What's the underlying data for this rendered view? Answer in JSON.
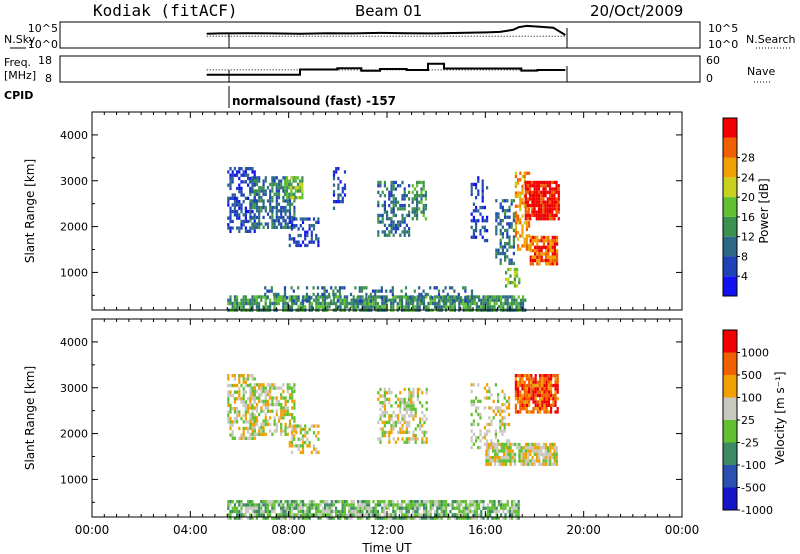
{
  "header": {
    "station": "Kodiak (fitACF)",
    "beam": "Beam 01",
    "date": "20/Oct/2009"
  },
  "panels": {
    "nsky": {
      "left_label": "N.Sky",
      "left_ticks": [
        "10^5",
        "10^0"
      ],
      "right_ticks": [
        "10^5",
        "10^0"
      ],
      "right_label": "N.Search"
    },
    "freq": {
      "left_label": "Freq.",
      "left_unit": "[MHz]",
      "left_ticks": [
        "18",
        "8"
      ],
      "right_ticks": [
        "60",
        "0"
      ],
      "right_label": "Nave"
    },
    "cpid": {
      "label": "CPID",
      "program": "normalsound (fast) -157"
    }
  },
  "chart_data": [
    {
      "type": "line",
      "name": "nsky-nsearch",
      "x_unit": "hours UT",
      "xlim": [
        0,
        24
      ],
      "series": [
        {
          "name": "N.Sky",
          "style": "solid",
          "x": [
            5.5,
            6.0,
            7.0,
            8.0,
            9.0,
            10.0,
            11.0,
            12.0,
            13.0,
            14.0,
            15.0,
            16.0,
            16.5,
            17.0,
            17.2,
            17.5,
            18.0,
            18.5,
            18.95
          ],
          "y": [
            0.55,
            0.56,
            0.57,
            0.56,
            0.55,
            0.57,
            0.56,
            0.58,
            0.57,
            0.56,
            0.58,
            0.6,
            0.62,
            0.7,
            0.8,
            0.85,
            0.82,
            0.78,
            0.5
          ]
        },
        {
          "name": "N.Search",
          "style": "dotted",
          "x": [
            5.5,
            19.0
          ],
          "y": [
            0.45,
            0.45
          ]
        }
      ]
    },
    {
      "type": "line",
      "name": "frequency-nave",
      "x_unit": "hours UT",
      "xlim": [
        0,
        24
      ],
      "left_ylim": [
        8,
        18
      ],
      "right_ylim": [
        0,
        60
      ],
      "series": [
        {
          "name": "Freq",
          "units": "MHz",
          "style": "solid",
          "x": [
            5.5,
            9.0,
            9.0,
            10.4,
            10.4,
            11.3,
            11.3,
            12.0,
            12.0,
            13.0,
            13.0,
            13.8,
            13.8,
            14.4,
            14.4,
            17.3,
            17.3,
            17.9,
            17.9,
            18.95
          ],
          "y": [
            10.8,
            10.8,
            12.8,
            12.8,
            13.3,
            13.3,
            12.3,
            12.3,
            13.0,
            13.0,
            12.6,
            12.6,
            15.0,
            15.0,
            13.2,
            13.2,
            12.4,
            12.4,
            12.6,
            12.6
          ]
        },
        {
          "name": "Nave",
          "units": "count",
          "style": "dotted",
          "x": [
            5.5,
            19.0
          ],
          "y": [
            28,
            28
          ]
        }
      ]
    },
    {
      "type": "heatmap",
      "name": "power",
      "xlabel": "Time UT",
      "ylabel": "Slant Range [km]",
      "xlim": [
        0,
        24
      ],
      "ylim": [
        180,
        4500
      ],
      "yticks": [
        1000,
        2000,
        3000,
        4000
      ],
      "colorbar": {
        "label": "Power [dB]",
        "ticks": [
          "4",
          "8",
          "12",
          "16",
          "20",
          "24",
          "28"
        ],
        "colors": [
          "#1212f0",
          "#2042b8",
          "#2c6888",
          "#3c9050",
          "#60c030",
          "#c8d020",
          "#f0a000",
          "#f06000",
          "#f00000"
        ]
      },
      "regions": [
        {
          "t": [
            5.5,
            6.6
          ],
          "r": [
            1900,
            3300
          ],
          "level": 1,
          "density": 0.55
        },
        {
          "t": [
            6.4,
            8.2
          ],
          "r": [
            2000,
            3100
          ],
          "level": 2,
          "density": 0.6
        },
        {
          "t": [
            7.8,
            8.6
          ],
          "r": [
            2600,
            3100
          ],
          "level": 4,
          "density": 0.7
        },
        {
          "t": [
            8.0,
            9.2
          ],
          "r": [
            1600,
            2200
          ],
          "level": 1,
          "density": 0.45
        },
        {
          "t": [
            9.8,
            10.3
          ],
          "r": [
            2400,
            3300
          ],
          "level": 1,
          "density": 0.3
        },
        {
          "t": [
            11.6,
            12.9
          ],
          "r": [
            1800,
            3000
          ],
          "level": 2,
          "density": 0.45
        },
        {
          "t": [
            13.0,
            13.6
          ],
          "r": [
            2200,
            3000
          ],
          "level": 3,
          "density": 0.6
        },
        {
          "t": [
            15.4,
            16.1
          ],
          "r": [
            1700,
            3100
          ],
          "level": 1,
          "density": 0.35
        },
        {
          "t": [
            16.4,
            17.2
          ],
          "r": [
            1200,
            2600
          ],
          "level": 2,
          "density": 0.5
        },
        {
          "t": [
            16.8,
            17.4
          ],
          "r": [
            700,
            1100
          ],
          "level": 4,
          "density": 0.55
        },
        {
          "t": [
            17.2,
            17.8
          ],
          "r": [
            1500,
            3200
          ],
          "level": 6,
          "density": 0.55
        },
        {
          "t": [
            17.6,
            18.95
          ],
          "r": [
            2200,
            3000
          ],
          "level": 8,
          "density": 0.9
        },
        {
          "t": [
            17.8,
            18.95
          ],
          "r": [
            1200,
            1800
          ],
          "level": 7,
          "density": 0.85
        },
        {
          "t": [
            5.5,
            17.6
          ],
          "r": [
            180,
            500
          ],
          "level": 3,
          "density": 0.8
        },
        {
          "t": [
            7.0,
            15.5
          ],
          "r": [
            400,
            700
          ],
          "level": 2,
          "density": 0.3
        }
      ]
    },
    {
      "type": "heatmap",
      "name": "velocity",
      "xlabel": "Time UT",
      "ylabel": "Slant Range [km]",
      "xlim": [
        0,
        24
      ],
      "ylim": [
        180,
        4500
      ],
      "yticks": [
        1000,
        2000,
        3000,
        4000
      ],
      "xticks": [
        "00:00",
        "04:00",
        "08:00",
        "12:00",
        "16:00",
        "20:00",
        "00:00"
      ],
      "colorbar": {
        "label": "Velocity [m s⁻¹]",
        "ticks": [
          "1000",
          "500",
          "100",
          "25",
          "-25",
          "-100",
          "-500",
          "-1000"
        ],
        "colors": [
          "#1414c8",
          "#2a50b0",
          "#3c8a64",
          "#60c030",
          "#c8c8c0",
          "#f0a000",
          "#f06000",
          "#f00000"
        ]
      },
      "regions": [
        {
          "t": [
            5.5,
            6.6
          ],
          "r": [
            1900,
            3300
          ],
          "level": 4,
          "density": 0.55
        },
        {
          "t": [
            6.4,
            8.2
          ],
          "r": [
            2000,
            3100
          ],
          "level": 4,
          "density": 0.6
        },
        {
          "t": [
            8.0,
            9.2
          ],
          "r": [
            1600,
            2200
          ],
          "level": 4,
          "density": 0.45
        },
        {
          "t": [
            11.6,
            13.6
          ],
          "r": [
            1800,
            3000
          ],
          "level": 4,
          "density": 0.45
        },
        {
          "t": [
            15.4,
            17.0
          ],
          "r": [
            1700,
            3100
          ],
          "level": 4,
          "density": 0.3
        },
        {
          "t": [
            17.2,
            18.95
          ],
          "r": [
            2500,
            3300
          ],
          "level": 6,
          "density": 0.85
        },
        {
          "t": [
            16.0,
            18.95
          ],
          "r": [
            1300,
            1800
          ],
          "level": 4,
          "density": 0.85
        },
        {
          "t": [
            5.5,
            17.4
          ],
          "r": [
            180,
            550
          ],
          "level": 3,
          "density": 0.8
        }
      ]
    }
  ],
  "xaxis": {
    "ticks": [
      "00:00",
      "04:00",
      "08:00",
      "12:00",
      "16:00",
      "20:00",
      "00:00"
    ],
    "label": "Time UT"
  }
}
